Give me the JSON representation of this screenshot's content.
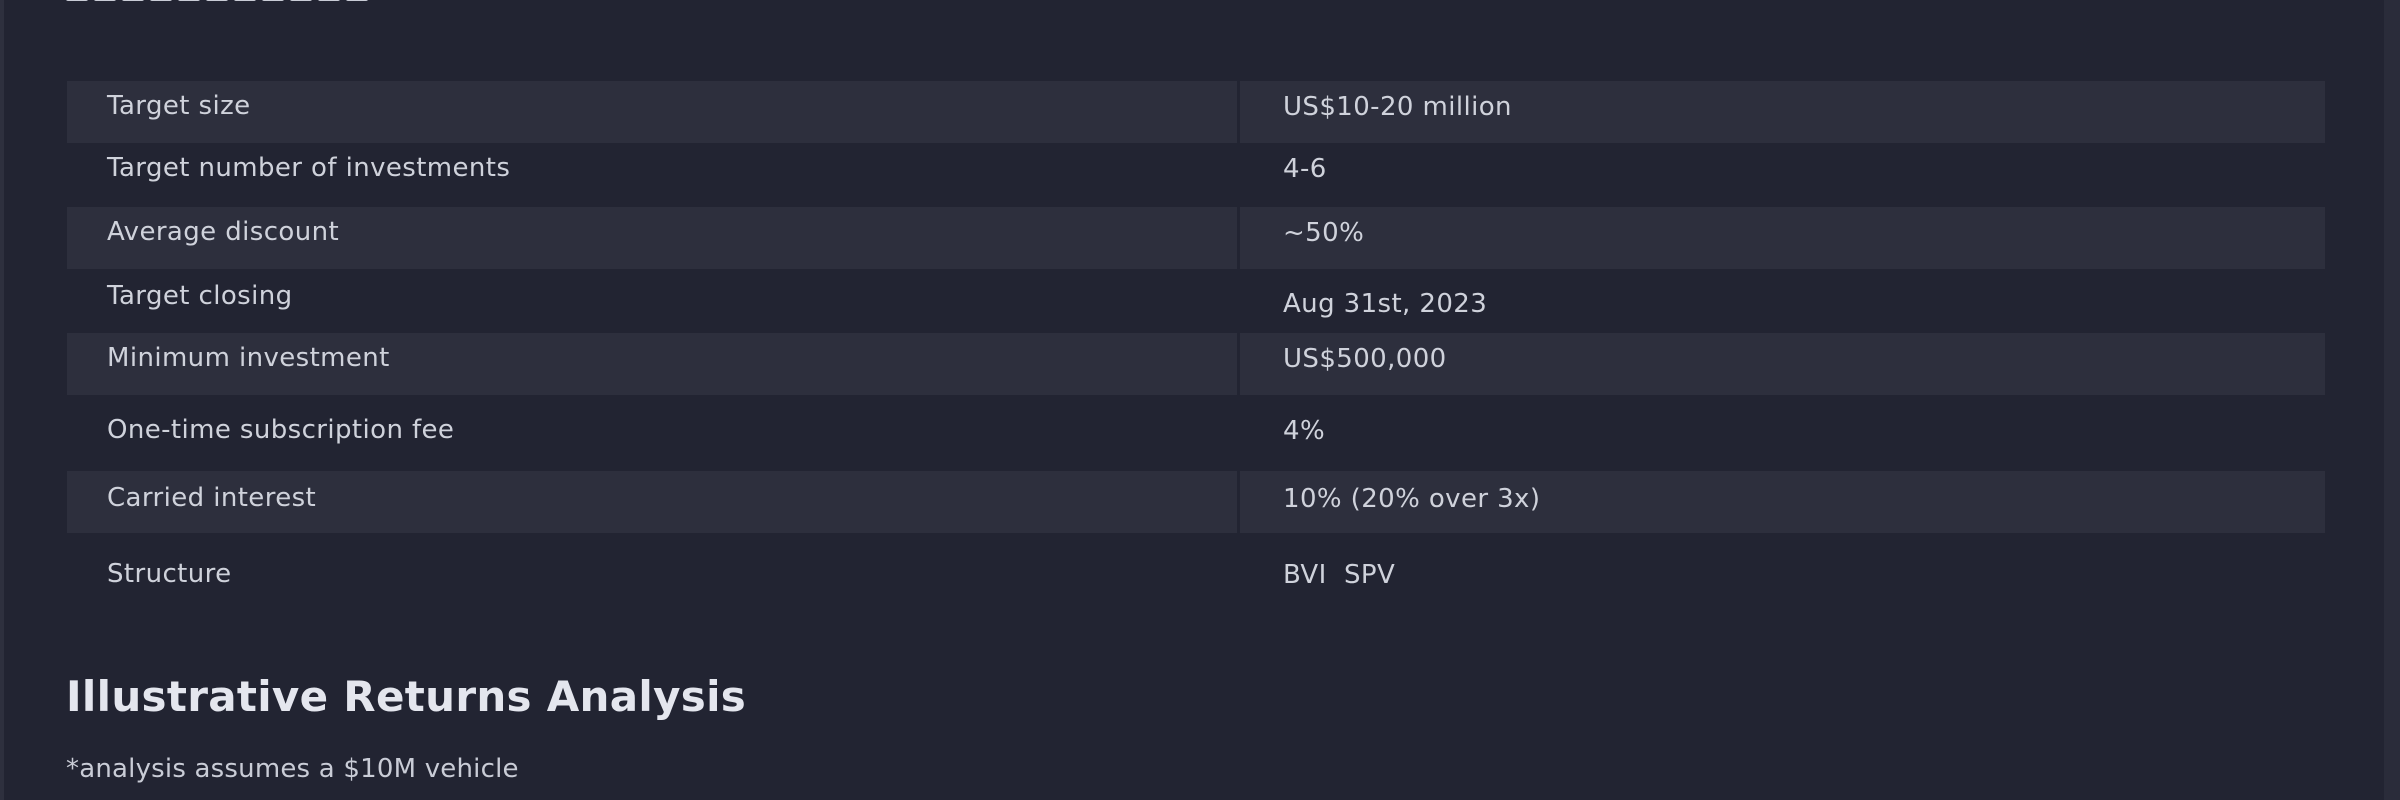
{
  "terms": {
    "rows": [
      {
        "label": "Target size",
        "value": "US$10-20 million",
        "shaded": true
      },
      {
        "label": "Target number of investments",
        "value": "4-6",
        "shaded": false
      },
      {
        "label": "Average discount",
        "value": "~50%",
        "shaded": true
      },
      {
        "label": "Target closing",
        "value": "Aug 31st, 2023",
        "shaded": false
      },
      {
        "label": "Minimum investment",
        "value": "US$500,000",
        "shaded": true
      },
      {
        "label": "One-time subscription fee",
        "value": "4%",
        "shaded": false
      },
      {
        "label": "Carried interest",
        "value": "10% (20% over 3x)",
        "shaded": true
      },
      {
        "label": "Structure",
        "value": "BVI  SPV",
        "shaded": false
      }
    ]
  },
  "returns": {
    "heading": "Illustrative Returns Analysis",
    "note": "*analysis assumes a $10M vehicle"
  }
}
